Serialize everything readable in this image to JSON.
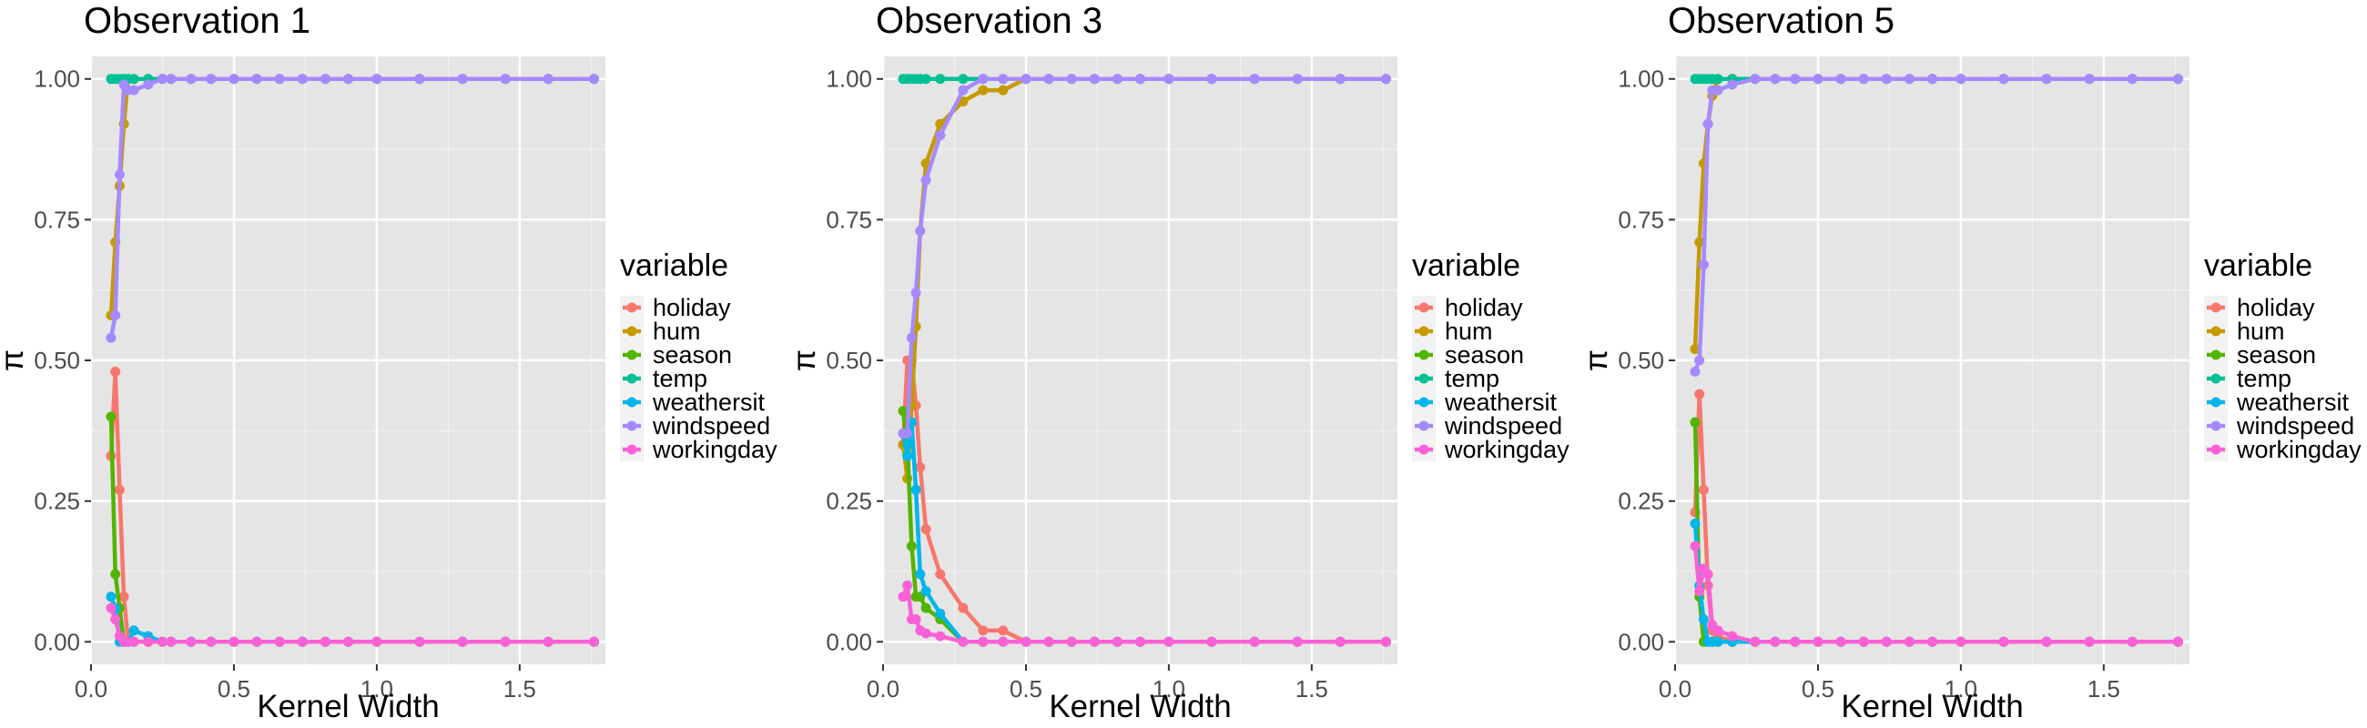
{
  "legend": {
    "title": "variable",
    "items": [
      "holiday",
      "hum",
      "season",
      "temp",
      "weathersit",
      "windspeed",
      "workingday"
    ]
  },
  "colors": {
    "holiday": "#F8766D",
    "hum": "#C49A00",
    "season": "#53B400",
    "temp": "#00C094",
    "weathersit": "#00B6EB",
    "windspeed": "#A58AFF",
    "workingday": "#FB61D7"
  },
  "panel_bg": "#E5E5E5",
  "chart_data": [
    {
      "type": "line",
      "title": "Observation 1",
      "xlabel": "Kernel Width",
      "ylabel": "π",
      "xlim": [
        0,
        1.8
      ],
      "ylim": [
        -0.04,
        1.04
      ],
      "xticks": [
        0.0,
        0.5,
        1.0,
        1.5
      ],
      "yticks": [
        0.0,
        0.25,
        0.5,
        0.75,
        1.0
      ],
      "x": [
        0.07,
        0.085,
        0.1,
        0.115,
        0.13,
        0.15,
        0.2,
        0.25,
        0.28,
        0.35,
        0.42,
        0.5,
        0.58,
        0.66,
        0.74,
        0.82,
        0.9,
        1.0,
        1.15,
        1.3,
        1.45,
        1.6,
        1.76
      ],
      "series": [
        {
          "name": "holiday",
          "values": [
            0.33,
            0.48,
            0.27,
            0.08,
            0,
            0,
            0,
            0,
            0,
            0,
            0,
            0,
            0,
            0,
            0,
            0,
            0,
            0,
            0,
            0,
            0,
            0,
            0
          ]
        },
        {
          "name": "hum",
          "values": [
            0.58,
            0.71,
            0.81,
            0.92,
            1,
            1,
            1,
            1,
            1,
            1,
            1,
            1,
            1,
            1,
            1,
            1,
            1,
            1,
            1,
            1,
            1,
            1,
            1
          ]
        },
        {
          "name": "season",
          "values": [
            0.4,
            0.12,
            0.06,
            0,
            0,
            0,
            0,
            0,
            0,
            0,
            0,
            0,
            0,
            0,
            0,
            0,
            0,
            0,
            0,
            0,
            0,
            0,
            0
          ]
        },
        {
          "name": "temp",
          "values": [
            1,
            1,
            1,
            1,
            1,
            1,
            1,
            1,
            1,
            1,
            1,
            1,
            1,
            1,
            1,
            1,
            1,
            1,
            1,
            1,
            1,
            1,
            1
          ]
        },
        {
          "name": "weathersit",
          "values": [
            0.08,
            0.06,
            0,
            0,
            0,
            0.02,
            0.01,
            0,
            0,
            0,
            0,
            0,
            0,
            0,
            0,
            0,
            0,
            0,
            0,
            0,
            0,
            0,
            0
          ]
        },
        {
          "name": "windspeed",
          "values": [
            0.54,
            0.58,
            0.83,
            0.99,
            0.98,
            0.98,
            0.99,
            1,
            1,
            1,
            1,
            1,
            1,
            1,
            1,
            1,
            1,
            1,
            1,
            1,
            1,
            1,
            1
          ]
        },
        {
          "name": "workingday",
          "values": [
            0.06,
            0.04,
            0.01,
            0,
            0,
            0,
            0,
            0,
            0,
            0,
            0,
            0,
            0,
            0,
            0,
            0,
            0,
            0,
            0,
            0,
            0,
            0,
            0
          ]
        }
      ]
    },
    {
      "type": "line",
      "title": "Observation 3",
      "xlabel": "Kernel Width",
      "ylabel": "π",
      "xlim": [
        0,
        1.8
      ],
      "ylim": [
        -0.04,
        1.04
      ],
      "xticks": [
        0.0,
        0.5,
        1.0,
        1.5
      ],
      "yticks": [
        0.0,
        0.25,
        0.5,
        0.75,
        1.0
      ],
      "x": [
        0.07,
        0.085,
        0.1,
        0.115,
        0.13,
        0.15,
        0.2,
        0.28,
        0.35,
        0.42,
        0.5,
        0.58,
        0.66,
        0.74,
        0.82,
        0.9,
        1.0,
        1.15,
        1.3,
        1.45,
        1.6,
        1.76
      ],
      "series": [
        {
          "name": "holiday",
          "values": [
            0.35,
            0.5,
            0.5,
            0.42,
            0.31,
            0.2,
            0.12,
            0.06,
            0.02,
            0.02,
            0,
            0,
            0,
            0,
            0,
            0,
            0,
            0,
            0,
            0,
            0,
            0
          ]
        },
        {
          "name": "hum",
          "values": [
            0.35,
            0.29,
            0.42,
            0.56,
            0.73,
            0.85,
            0.92,
            0.96,
            0.98,
            0.98,
            1,
            1,
            1,
            1,
            1,
            1,
            1,
            1,
            1,
            1,
            1,
            1
          ]
        },
        {
          "name": "season",
          "values": [
            0.41,
            0.35,
            0.17,
            0.08,
            0.08,
            0.06,
            0.04,
            0,
            0,
            0,
            0,
            0,
            0,
            0,
            0,
            0,
            0,
            0,
            0,
            0,
            0,
            0
          ]
        },
        {
          "name": "temp",
          "values": [
            1,
            1,
            1,
            1,
            1,
            1,
            1,
            1,
            1,
            1,
            1,
            1,
            1,
            1,
            1,
            1,
            1,
            1,
            1,
            1,
            1,
            1
          ]
        },
        {
          "name": "weathersit",
          "values": [
            0.37,
            0.33,
            0.39,
            0.27,
            0.12,
            0.09,
            0.05,
            0,
            0,
            0,
            0,
            0,
            0,
            0,
            0,
            0,
            0,
            0,
            0,
            0,
            0,
            0
          ]
        },
        {
          "name": "windspeed",
          "values": [
            0.37,
            0.37,
            0.54,
            0.62,
            0.73,
            0.82,
            0.9,
            0.98,
            1,
            1,
            1,
            1,
            1,
            1,
            1,
            1,
            1,
            1,
            1,
            1,
            1,
            1
          ]
        },
        {
          "name": "workingday",
          "values": [
            0.08,
            0.1,
            0.04,
            0.04,
            0.02,
            0.015,
            0.01,
            0,
            0,
            0,
            0,
            0,
            0,
            0,
            0,
            0,
            0,
            0,
            0,
            0,
            0,
            0
          ]
        }
      ]
    },
    {
      "type": "line",
      "title": "Observation 5",
      "xlabel": "Kernel Width",
      "ylabel": "π",
      "xlim": [
        0,
        1.8
      ],
      "ylim": [
        -0.04,
        1.04
      ],
      "xticks": [
        0.0,
        0.5,
        1.0,
        1.5
      ],
      "yticks": [
        0.0,
        0.25,
        0.5,
        0.75,
        1.0
      ],
      "x": [
        0.07,
        0.085,
        0.1,
        0.115,
        0.13,
        0.15,
        0.2,
        0.28,
        0.35,
        0.42,
        0.5,
        0.58,
        0.66,
        0.74,
        0.82,
        0.9,
        1.0,
        1.15,
        1.3,
        1.45,
        1.6,
        1.76
      ],
      "series": [
        {
          "name": "holiday",
          "values": [
            0.23,
            0.44,
            0.27,
            0.1,
            0.02,
            0.01,
            0,
            0,
            0,
            0,
            0,
            0,
            0,
            0,
            0,
            0,
            0,
            0,
            0,
            0,
            0,
            0
          ]
        },
        {
          "name": "hum",
          "values": [
            0.52,
            0.71,
            0.85,
            0.92,
            0.97,
            1,
            1,
            1,
            1,
            1,
            1,
            1,
            1,
            1,
            1,
            1,
            1,
            1,
            1,
            1,
            1,
            1
          ]
        },
        {
          "name": "season",
          "values": [
            0.39,
            0.08,
            0,
            0,
            0,
            0,
            0,
            0,
            0,
            0,
            0,
            0,
            0,
            0,
            0,
            0,
            0,
            0,
            0,
            0,
            0,
            0
          ]
        },
        {
          "name": "temp",
          "values": [
            1,
            1,
            1,
            1,
            1,
            1,
            1,
            1,
            1,
            1,
            1,
            1,
            1,
            1,
            1,
            1,
            1,
            1,
            1,
            1,
            1,
            1
          ]
        },
        {
          "name": "weathersit",
          "values": [
            0.21,
            0.1,
            0.04,
            0,
            0,
            0,
            0,
            0,
            0,
            0,
            0,
            0,
            0,
            0,
            0,
            0,
            0,
            0,
            0,
            0,
            0,
            0
          ]
        },
        {
          "name": "windspeed",
          "values": [
            0.48,
            0.5,
            0.67,
            0.92,
            0.98,
            0.98,
            0.99,
            1,
            1,
            1,
            1,
            1,
            1,
            1,
            1,
            1,
            1,
            1,
            1,
            1,
            1,
            1
          ]
        },
        {
          "name": "workingday",
          "values": [
            0.17,
            0.09,
            0.13,
            0.12,
            0.03,
            0.02,
            0.01,
            0,
            0,
            0,
            0,
            0,
            0,
            0,
            0,
            0,
            0,
            0,
            0,
            0,
            0,
            0
          ]
        }
      ]
    }
  ]
}
